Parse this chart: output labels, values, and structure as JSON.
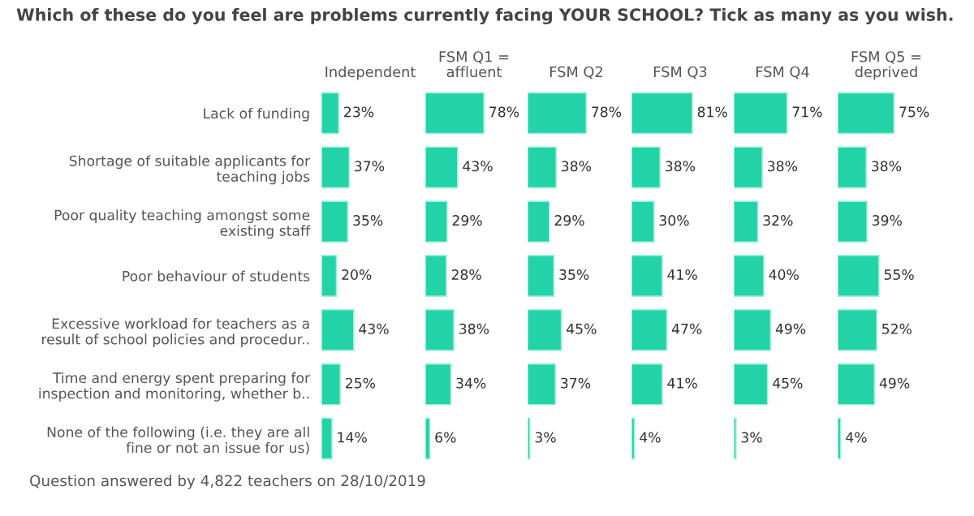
{
  "chart_data": [
    {
      "type": "other",
      "title": "Which of these do you feel are problems currently facing YOUR SCHOOL? Tick as many as you wish.",
      "annotations": [
        "Question answered by 4,822 teachers on 28/10/2019"
      ]
    },
    {
      "type": "bar",
      "orientation": "horizontal",
      "title": "Independent",
      "categories": [
        "Lack of funding",
        "Shortage of suitable applicants for\nteaching jobs",
        "Poor quality teaching amongst some\nexisting staff",
        "Poor behaviour of students",
        "Excessive workload for teachers as a\nresult of school policies and procedur..",
        "Time and energy spent preparing for\ninspection and monitoring, whether b..",
        "None of the following (i.e. they are all\nfine or not an issue for us)"
      ],
      "values": [
        23,
        37,
        35,
        20,
        43,
        25,
        14
      ],
      "value_labels": [
        "23%",
        "37%",
        "35%",
        "20%",
        "43%",
        "25%",
        "14%"
      ],
      "color": "#21d3a6",
      "tick_labels": "y"
    },
    {
      "type": "bar",
      "orientation": "horizontal",
      "title": "FSM Q1 =\naffluent",
      "categories": [
        null,
        null,
        null,
        null,
        null,
        null,
        null
      ],
      "values": [
        78,
        43,
        29,
        28,
        38,
        34,
        6
      ],
      "value_labels": [
        "78%",
        "43%",
        "29%",
        "28%",
        "38%",
        "34%",
        "6%"
      ],
      "color": "#21d3a6",
      "tick_labels": false
    },
    {
      "type": "bar",
      "orientation": "horizontal",
      "title": "FSM Q2",
      "categories": [
        null,
        null,
        null,
        null,
        null,
        null,
        null
      ],
      "values": [
        78,
        38,
        29,
        35,
        45,
        37,
        3
      ],
      "value_labels": [
        "78%",
        "38%",
        "29%",
        "35%",
        "45%",
        "37%",
        "3%"
      ],
      "color": "#21d3a6",
      "tick_labels": false
    },
    {
      "type": "bar",
      "orientation": "horizontal",
      "title": "FSM Q3",
      "categories": [
        null,
        null,
        null,
        null,
        null,
        null,
        null
      ],
      "values": [
        81,
        38,
        30,
        41,
        47,
        41,
        4
      ],
      "value_labels": [
        "81%",
        "38%",
        "30%",
        "41%",
        "47%",
        "41%",
        "4%"
      ],
      "color": "#21d3a6",
      "tick_labels": false
    },
    {
      "type": "bar",
      "orientation": "horizontal",
      "title": "FSM Q4",
      "categories": [
        null,
        null,
        null,
        null,
        null,
        null,
        null
      ],
      "values": [
        71,
        38,
        32,
        40,
        49,
        45,
        3
      ],
      "value_labels": [
        "71%",
        "38%",
        "32%",
        "40%",
        "49%",
        "45%",
        "3%"
      ],
      "color": "#21d3a6",
      "tick_labels": false
    },
    {
      "type": "bar",
      "orientation": "horizontal",
      "title": "FSM Q5 =\ndeprived",
      "categories": [
        null,
        null,
        null,
        null,
        null,
        null,
        null
      ],
      "values": [
        75,
        38,
        39,
        55,
        52,
        49,
        4
      ],
      "value_labels": [
        "75%",
        "38%",
        "39%",
        "55%",
        "52%",
        "49%",
        "4%"
      ],
      "color": "#21d3a6",
      "tick_labels": false
    }
  ]
}
